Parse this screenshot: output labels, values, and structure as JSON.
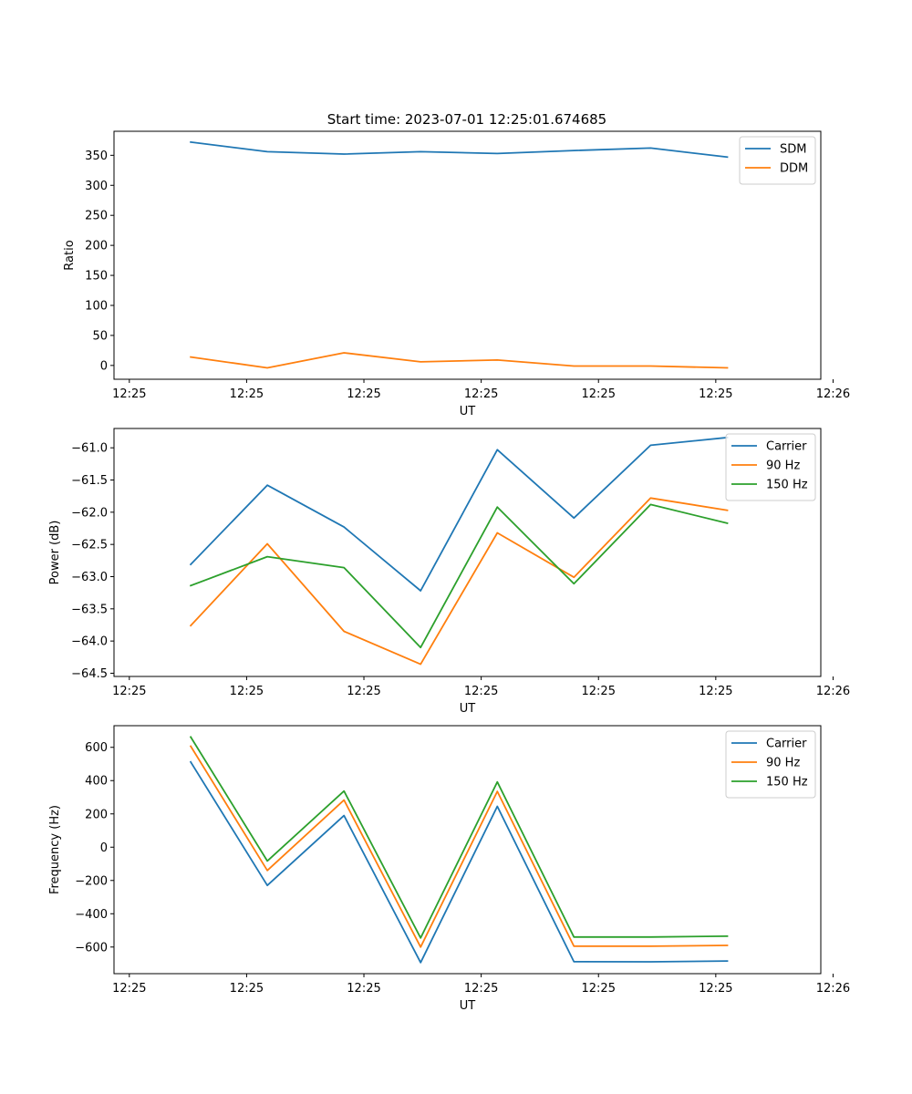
{
  "figure": {
    "title": "Start time: 2023-07-01 12:25:01.674685"
  },
  "chart_data": [
    {
      "type": "line",
      "title": "Start time: 2023-07-01 12:25:01.674685",
      "xlabel": "UT",
      "ylabel": "Ratio",
      "x": [
        1,
        2,
        3,
        4,
        5,
        6,
        7,
        8
      ],
      "xlim": [
        0,
        9.22
      ],
      "xticks": [
        0.2,
        1.73,
        3.26,
        4.79,
        6.32,
        7.85,
        9.38
      ],
      "xtick_labels": [
        "12:25",
        "12:25",
        "12:25",
        "12:25",
        "12:25",
        "12:25",
        "12:26"
      ],
      "ylim": [
        -23,
        390
      ],
      "yticks": [
        0,
        50,
        100,
        150,
        200,
        250,
        300,
        350
      ],
      "ytick_labels": [
        "0",
        "50",
        "100",
        "150",
        "200",
        "250",
        "300",
        "350"
      ],
      "legend": "top-right",
      "series": [
        {
          "name": "SDM",
          "color": "#1f77b4",
          "values": [
            372,
            356,
            352,
            356,
            353,
            358,
            362,
            347
          ]
        },
        {
          "name": "DDM",
          "color": "#ff7f0e",
          "values": [
            14,
            -4,
            21,
            6,
            9,
            -1,
            -1,
            -4
          ]
        }
      ]
    },
    {
      "type": "line",
      "title": "",
      "xlabel": "UT",
      "ylabel": "Power (dB)",
      "x": [
        1,
        2,
        3,
        4,
        5,
        6,
        7,
        8
      ],
      "xlim": [
        0,
        9.22
      ],
      "xticks": [
        0.2,
        1.73,
        3.26,
        4.79,
        6.32,
        7.85,
        9.38
      ],
      "xtick_labels": [
        "12:25",
        "12:25",
        "12:25",
        "12:25",
        "12:25",
        "12:25",
        "12:26"
      ],
      "ylim": [
        -64.55,
        -60.7
      ],
      "yticks": [
        -64.5,
        -64.0,
        -63.5,
        -63.0,
        -62.5,
        -62.0,
        -61.5,
        -61.0
      ],
      "ytick_labels": [
        "−64.5",
        "−64.0",
        "−63.5",
        "−63.0",
        "−62.5",
        "−62.0",
        "−61.5",
        "−61.0"
      ],
      "legend": "top-right",
      "series": [
        {
          "name": "Carrier",
          "color": "#1f77b4",
          "values": [
            -62.81,
            -61.58,
            -62.23,
            -63.22,
            -61.03,
            -62.09,
            -60.96,
            -60.84
          ]
        },
        {
          "name": "90 Hz",
          "color": "#ff7f0e",
          "values": [
            -63.76,
            -62.49,
            -63.85,
            -64.36,
            -62.32,
            -63.01,
            -61.78,
            -61.97
          ]
        },
        {
          "name": "150 Hz",
          "color": "#2ca02c",
          "values": [
            -63.14,
            -62.69,
            -62.86,
            -64.1,
            -61.92,
            -63.11,
            -61.88,
            -62.17
          ]
        }
      ]
    },
    {
      "type": "line",
      "title": "",
      "xlabel": "UT",
      "ylabel": "Frequency (Hz)",
      "x": [
        1,
        2,
        3,
        4,
        5,
        6,
        7,
        8
      ],
      "xlim": [
        0,
        9.22
      ],
      "xticks": [
        0.2,
        1.73,
        3.26,
        4.79,
        6.32,
        7.85,
        9.38
      ],
      "xtick_labels": [
        "12:25",
        "12:25",
        "12:25",
        "12:25",
        "12:25",
        "12:25",
        "12:26"
      ],
      "ylim": [
        -760,
        730
      ],
      "yticks": [
        -600,
        -400,
        -200,
        0,
        200,
        400,
        600
      ],
      "ytick_labels": [
        "−600",
        "−400",
        "−200",
        "0",
        "200",
        "400",
        "600"
      ],
      "legend": "top-right",
      "series": [
        {
          "name": "Carrier",
          "color": "#1f77b4",
          "values": [
            512,
            -230,
            190,
            -693,
            245,
            -688,
            -689,
            -684
          ]
        },
        {
          "name": "90 Hz",
          "color": "#ff7f0e",
          "values": [
            607,
            -140,
            283,
            -600,
            335,
            -595,
            -595,
            -590
          ]
        },
        {
          "name": "150 Hz",
          "color": "#2ca02c",
          "values": [
            662,
            -83,
            337,
            -545,
            392,
            -540,
            -540,
            -535
          ]
        }
      ]
    }
  ]
}
